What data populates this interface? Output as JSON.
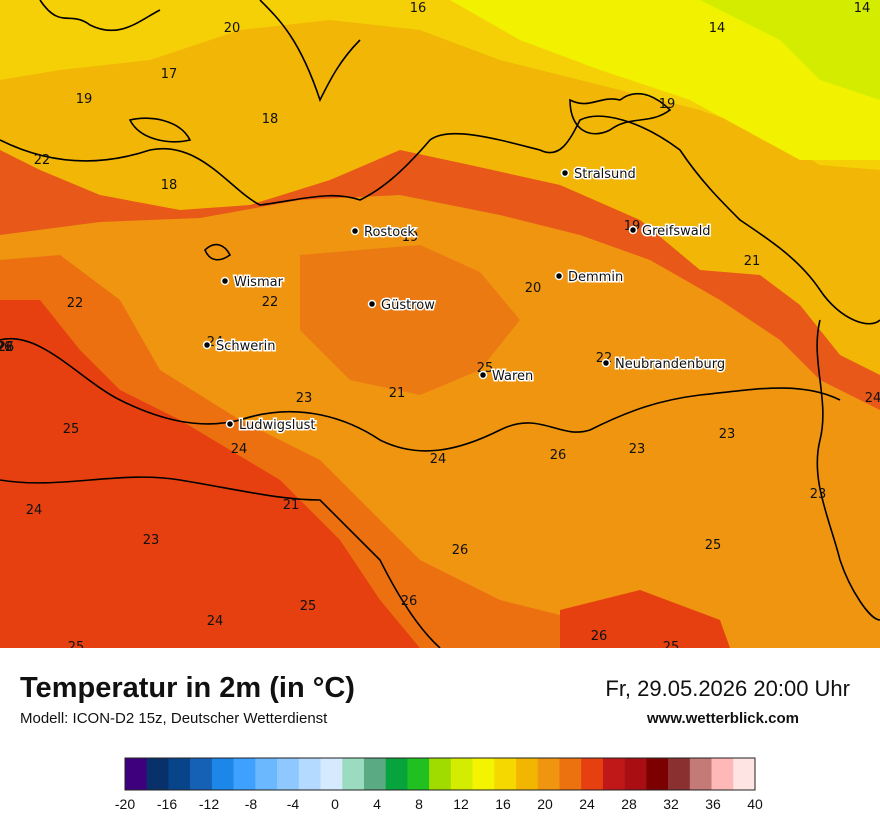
{
  "map": {
    "cities": [
      {
        "name": "Stralsund"
      },
      {
        "name": "Rostock"
      },
      {
        "name": "Greifswald"
      },
      {
        "name": "Wismar"
      },
      {
        "name": "Demmin"
      },
      {
        "name": "Güstrow"
      },
      {
        "name": "Schwerin"
      },
      {
        "name": "Neubrandenburg"
      },
      {
        "name": "Waren"
      },
      {
        "name": "Ludwigslust"
      }
    ],
    "value_labels": [
      "16",
      "14",
      "14",
      "20",
      "17",
      "19",
      "18",
      "19",
      "22",
      "18",
      "19",
      "19",
      "21",
      "20",
      "22",
      "22",
      "25",
      "22",
      "24",
      "23",
      "21",
      "25",
      "24",
      "26",
      "24",
      "23",
      "23",
      "24",
      "23",
      "24",
      "21",
      "23",
      "26",
      "25",
      "26",
      "25",
      "24",
      "25",
      "26",
      "25",
      "22",
      "26",
      "26"
    ]
  },
  "legend": {
    "title": "Temperatur in 2m (in °C)",
    "model": "Modell: ICON-D2 15z, Deutscher Wetterdienst",
    "datetime": "Fr, 29.05.2026 20:00 Uhr",
    "website": "www.wetterblick.com"
  },
  "color_scale": {
    "tick_labels": [
      "-20",
      "-16",
      "-12",
      "-8",
      "-4",
      "0",
      "4",
      "8",
      "12",
      "16",
      "20",
      "24",
      "28",
      "32",
      "36",
      "40"
    ],
    "colors": [
      "#3f007d",
      "#08306b",
      "#08448a",
      "#1561b5",
      "#1c87e8",
      "#3ea0ff",
      "#6cb8ff",
      "#8ec8ff",
      "#b4dbff",
      "#d5eaff",
      "#9bdcc0",
      "#5aaa84",
      "#07a33c",
      "#20c020",
      "#a0dc00",
      "#d4ec00",
      "#f4f400",
      "#f5d800",
      "#f2b600",
      "#ef9510",
      "#ec7210",
      "#e64010",
      "#c01818",
      "#a80e14",
      "#7c0000",
      "#8b3030",
      "#c47b78",
      "#ffb8b8",
      "#ffe4e4"
    ]
  }
}
